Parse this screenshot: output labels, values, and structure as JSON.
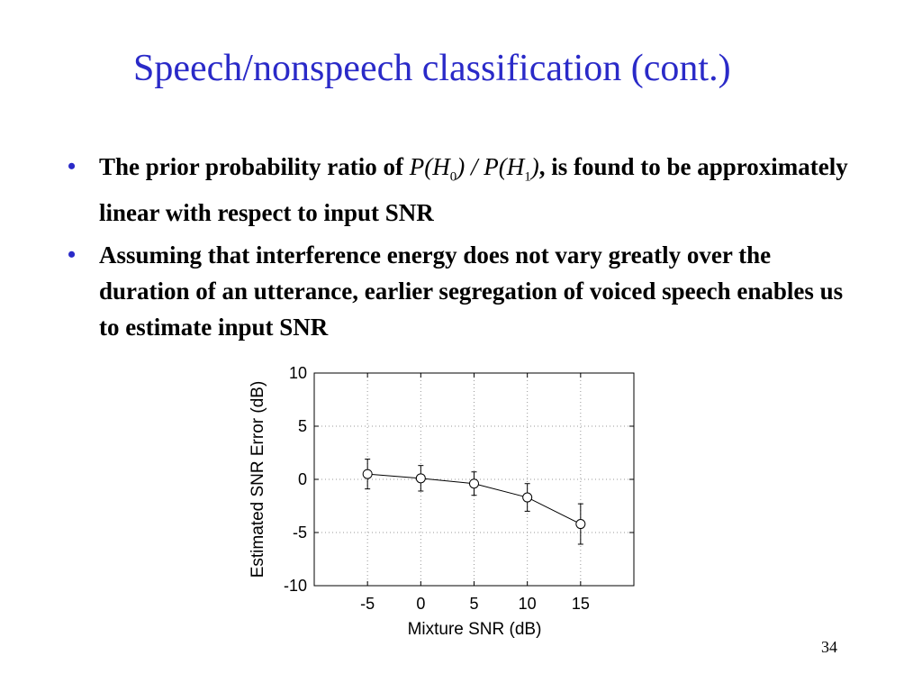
{
  "slide": {
    "title": "Speech/nonspeech classification (cont.)",
    "bullet1_text_before": "The prior probability ratio of ",
    "bullet1_math": {
      "p0": "P(H",
      "s0": "0",
      "mid": ") / P(H",
      "s1": "1",
      "end": ")"
    },
    "bullet1_text_after": ", is found to be approximately linear with respect to input SNR",
    "bullet2_text": "Assuming that interference energy does not vary greatly over the duration of an utterance, earlier segregation of voiced speech enables us to estimate input SNR",
    "page_number": "34",
    "bullet_color": "#2a2ac8",
    "title_color": "#2a2ac8"
  },
  "chart_data": {
    "type": "line",
    "xlabel": "Mixture SNR (dB)",
    "ylabel": "Estimated SNR Error (dB)",
    "xlim": [
      -10,
      20
    ],
    "ylim": [
      -10,
      10
    ],
    "xticks": [
      -5,
      0,
      5,
      10,
      15
    ],
    "yticks": [
      10,
      5,
      0,
      -5,
      -10
    ],
    "grid": true,
    "marker": "circle",
    "series": [
      {
        "x": [
          -5,
          0,
          5,
          10,
          15
        ],
        "y": [
          0.5,
          0.1,
          -0.4,
          -1.7,
          -4.2
        ],
        "err": [
          1.4,
          1.2,
          1.1,
          1.3,
          1.9
        ]
      }
    ]
  }
}
